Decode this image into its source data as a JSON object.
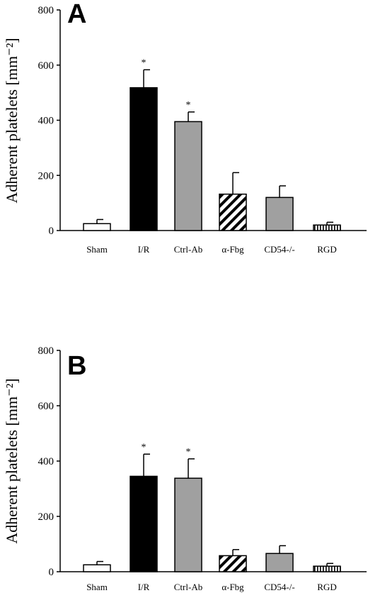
{
  "chart_data": [
    {
      "type": "bar",
      "panel_label": "A",
      "ylabel": "Adherent platelets [mm⁻²]",
      "ylim": [
        0,
        800
      ],
      "yticks": [
        "0",
        "200",
        "400",
        "600",
        "800"
      ],
      "categories": [
        "Sham",
        "I/R",
        "Ctrl-Ab",
        "α-Fbg",
        "CD54-/-",
        "RGD"
      ],
      "values": [
        25,
        518,
        395,
        132,
        120,
        20
      ],
      "errors": [
        15,
        65,
        35,
        78,
        42,
        10
      ],
      "significance": [
        "",
        "*",
        "*",
        "",
        "",
        ""
      ],
      "fills": [
        "white",
        "black",
        "gray",
        "diagonal-hatch",
        "gray",
        "vertical-hatch"
      ]
    },
    {
      "type": "bar",
      "panel_label": "B",
      "ylabel": "Adherent platelets [mm⁻²]",
      "ylim": [
        0,
        800
      ],
      "yticks": [
        "0",
        "200",
        "400",
        "600",
        "800"
      ],
      "categories": [
        "Sham",
        "I/R",
        "Ctrl-Ab",
        "α-Fbg",
        "CD54-/-",
        "RGD"
      ],
      "values": [
        25,
        345,
        338,
        58,
        66,
        20
      ],
      "errors": [
        12,
        80,
        70,
        22,
        28,
        10
      ],
      "significance": [
        "",
        "*",
        "*",
        "",
        "",
        ""
      ],
      "fills": [
        "white",
        "black",
        "gray",
        "diagonal-hatch",
        "gray",
        "vertical-hatch"
      ]
    }
  ],
  "colors": {
    "black": "#000000",
    "gray": "#a0a0a0",
    "white": "#ffffff"
  }
}
